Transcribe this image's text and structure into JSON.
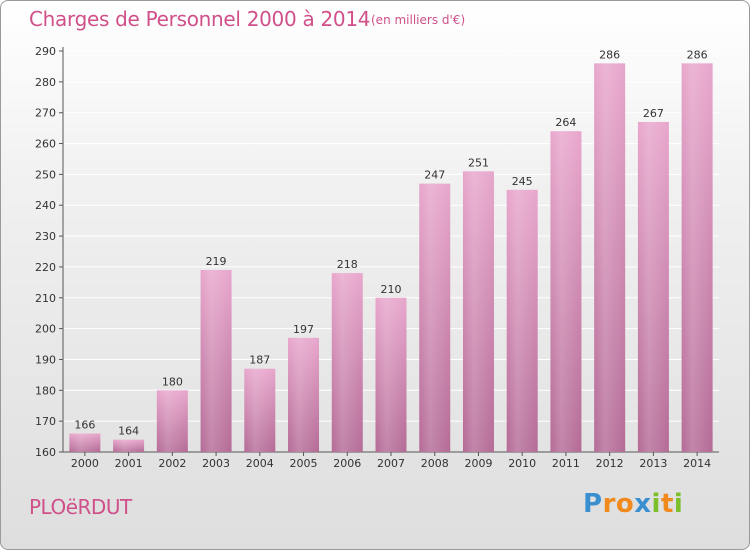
{
  "title": "Charges de Personnel 2000 à 2014",
  "subtitle": "(en milliers d'€)",
  "commune": "PLOëRDUT",
  "logo": {
    "letters": [
      "P",
      "r",
      "o",
      "x",
      "i",
      "t",
      "i"
    ],
    "colors": [
      "#3a8fd0",
      "#f08a1c",
      "#f08a1c",
      "#3a8fd0",
      "#7bbf2a",
      "#f08a1c",
      "#7bbf2a"
    ]
  },
  "chart_data": {
    "type": "bar",
    "categories": [
      "2000",
      "2001",
      "2002",
      "2003",
      "2004",
      "2005",
      "2006",
      "2007",
      "2008",
      "2009",
      "2010",
      "2011",
      "2012",
      "2013",
      "2014"
    ],
    "values": [
      166,
      164,
      180,
      219,
      187,
      197,
      218,
      210,
      247,
      251,
      245,
      264,
      286,
      267,
      286
    ],
    "ylim": [
      160,
      290
    ],
    "yticks": [
      160,
      170,
      180,
      190,
      200,
      210,
      220,
      230,
      240,
      250,
      260,
      270,
      280,
      290
    ],
    "grid": true,
    "bar_color": "#d67fae"
  }
}
